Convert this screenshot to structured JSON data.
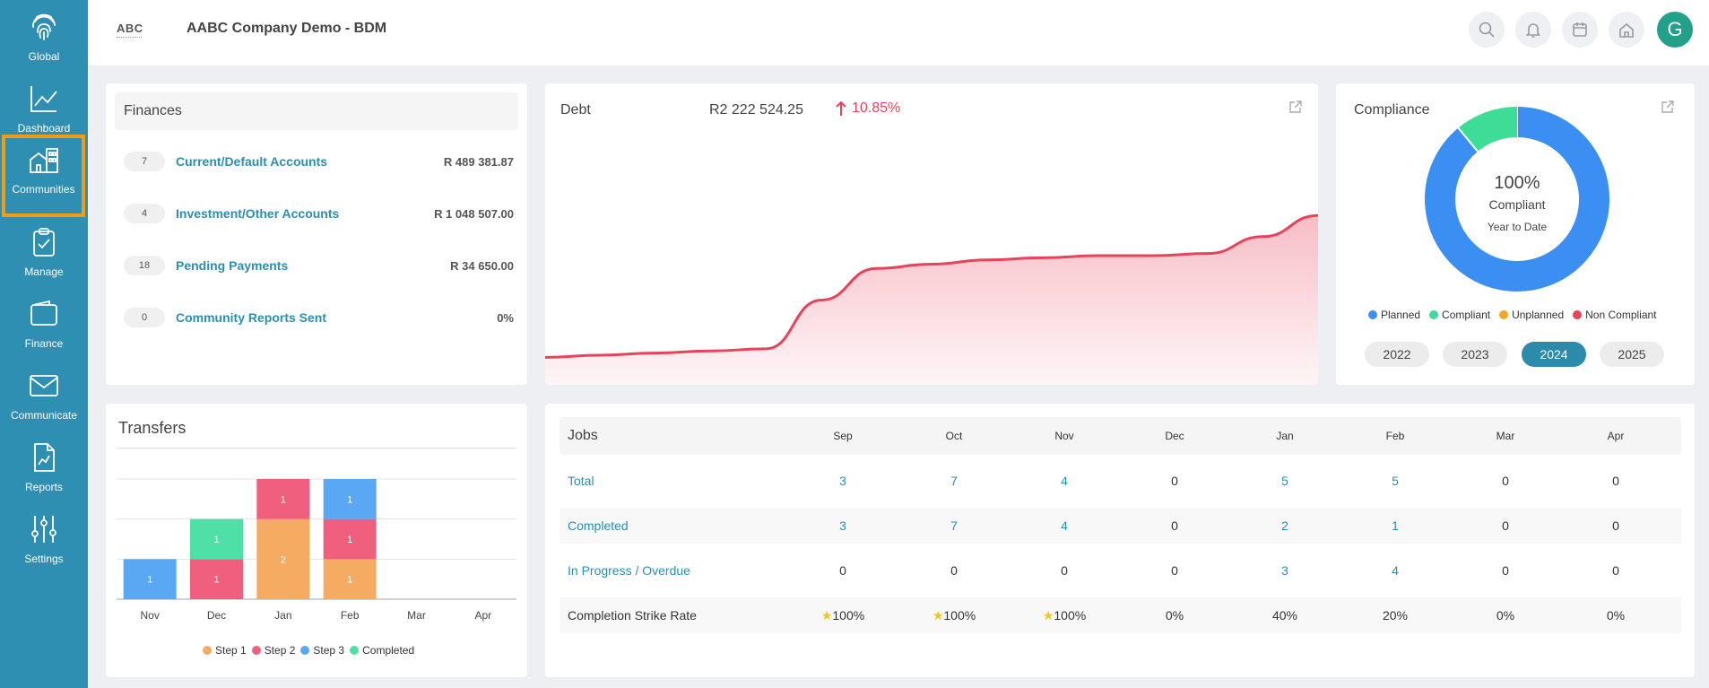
{
  "sidebar": {
    "items": [
      {
        "label": "Global",
        "icon": "fingerprint-icon"
      },
      {
        "label": "Dashboard",
        "icon": "chart-line-icon"
      },
      {
        "label": "Communities",
        "icon": "buildings-icon"
      },
      {
        "label": "Manage",
        "icon": "clipboard-check-icon"
      },
      {
        "label": "Finance",
        "icon": "wallet-icon"
      },
      {
        "label": "Communicate",
        "icon": "envelope-icon"
      },
      {
        "label": "Reports",
        "icon": "report-icon"
      },
      {
        "label": "Settings",
        "icon": "sliders-icon"
      }
    ]
  },
  "header": {
    "logo": "ABC",
    "title": "AABC Company Demo - BDM",
    "avatar": "G"
  },
  "finances": {
    "title": "Finances",
    "rows": [
      {
        "count": "7",
        "label": "Current/Default Accounts",
        "value": "R 489 381.87"
      },
      {
        "count": "4",
        "label": "Investment/Other Accounts",
        "value": "R 1 048 507.00"
      },
      {
        "count": "18",
        "label": "Pending Payments",
        "value": "R 34 650.00"
      },
      {
        "count": "0",
        "label": "Community Reports Sent",
        "value": "0%"
      }
    ]
  },
  "debt": {
    "title": "Debt",
    "amount": "R2 222 524.25",
    "change": "10.85%",
    "series": [
      0.13,
      0.14,
      0.15,
      0.16,
      0.17,
      0.4,
      0.55,
      0.57,
      0.59,
      0.6,
      0.61,
      0.61,
      0.62,
      0.7,
      0.8
    ],
    "color": "#e8435a"
  },
  "compliance": {
    "title": "Compliance",
    "pct": "100%",
    "label": "Compliant",
    "sub": "Year to Date",
    "slices": [
      {
        "name": "Planned",
        "value": 89,
        "color": "#3b8ff2"
      },
      {
        "name": "Compliant",
        "value": 11,
        "color": "#3ddc97"
      }
    ],
    "legend": [
      {
        "name": "Planned",
        "color": "#3b8ff2"
      },
      {
        "name": "Compliant",
        "color": "#3ddc97"
      },
      {
        "name": "Unplanned",
        "color": "#f5a623"
      },
      {
        "name": "Non Compliant",
        "color": "#e8435a"
      }
    ],
    "years": [
      "2022",
      "2023",
      "2024",
      "2025"
    ],
    "selected_year": "2024"
  },
  "chart_data": {
    "type": "bar",
    "title": "Transfers",
    "categories": [
      "Nov",
      "Dec",
      "Jan",
      "Feb",
      "Mar",
      "Apr"
    ],
    "series": [
      {
        "name": "Step 1",
        "color": "#f5ac62",
        "values": [
          0,
          0,
          2,
          1,
          0,
          0
        ]
      },
      {
        "name": "Step 2",
        "color": "#f05f7e",
        "values": [
          0,
          1,
          1,
          1,
          0,
          0
        ]
      },
      {
        "name": "Step 3",
        "color": "#5aa8f4",
        "values": [
          1,
          0,
          0,
          1,
          0,
          0
        ]
      },
      {
        "name": "Completed",
        "color": "#4fe0a8",
        "values": [
          0,
          1,
          0,
          0,
          0,
          0
        ]
      }
    ],
    "ylim": [
      0,
      3
    ],
    "grid": true,
    "legend": "bottom",
    "stacked": true
  },
  "jobs": {
    "title": "Jobs",
    "months": [
      "Sep",
      "Oct",
      "Nov",
      "Dec",
      "Jan",
      "Feb",
      "Mar",
      "Apr"
    ],
    "rows": [
      {
        "label": "Total",
        "link": true,
        "values": [
          "3",
          "7",
          "4",
          "0",
          "5",
          "5",
          "0",
          "0"
        ],
        "blue": [
          1,
          1,
          1,
          0,
          1,
          1,
          0,
          0
        ]
      },
      {
        "label": "Completed",
        "link": true,
        "values": [
          "3",
          "7",
          "4",
          "0",
          "2",
          "1",
          "0",
          "0"
        ],
        "blue": [
          1,
          1,
          1,
          0,
          1,
          1,
          0,
          0
        ]
      },
      {
        "label": "In Progress / Overdue",
        "link": true,
        "values": [
          "0",
          "0",
          "0",
          "0",
          "3",
          "4",
          "0",
          "0"
        ],
        "blue": [
          0,
          0,
          0,
          0,
          1,
          1,
          0,
          0
        ]
      },
      {
        "label": "Completion Strike Rate",
        "link": false,
        "values": [
          "100%",
          "100%",
          "100%",
          "0%",
          "40%",
          "20%",
          "0%",
          "0%"
        ],
        "star": [
          1,
          1,
          1,
          0,
          0,
          0,
          0,
          0
        ],
        "blue": [
          0,
          0,
          0,
          0,
          0,
          0,
          0,
          0
        ]
      }
    ]
  }
}
